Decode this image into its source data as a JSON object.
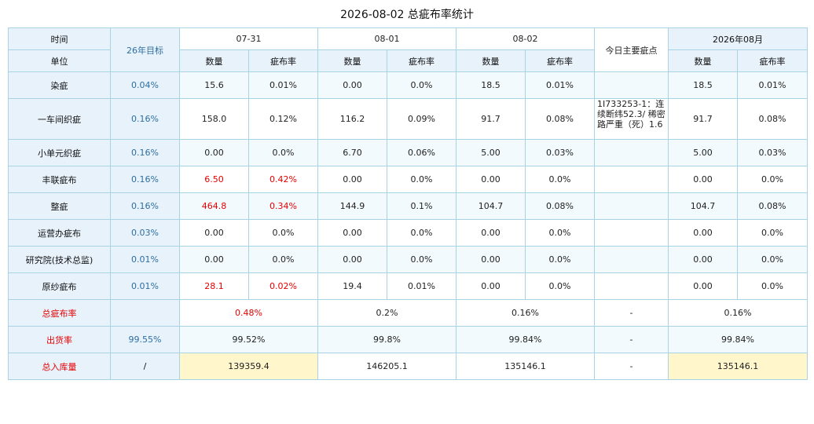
{
  "title": "2026-08-02 总疵布率统计",
  "header": {
    "time": "时间",
    "unit": "单位",
    "target": "26年目标",
    "dates": [
      "07-31",
      "08-01",
      "08-02"
    ],
    "main_defect": "今日主要疵点",
    "month": "2026年08月",
    "qty": "数量",
    "rate": "疵布率"
  },
  "rows": [
    {
      "name": "染疵",
      "target": "0.04%",
      "d1q": "15.6",
      "d1r": "0.01%",
      "d2q": "0.00",
      "d2r": "0.0%",
      "d3q": "18.5",
      "d3r": "0.01%",
      "note": "",
      "mq": "18.5",
      "mr": "0.01%"
    },
    {
      "name": "一车间织疵",
      "target": "0.16%",
      "d1q": "158.0",
      "d1r": "0.12%",
      "d2q": "116.2",
      "d2r": "0.09%",
      "d3q": "91.7",
      "d3r": "0.08%",
      "note": "1I733253-1：连续断纬52.3/ 稀密路严重（死）1.6",
      "mq": "91.7",
      "mr": "0.08%"
    },
    {
      "name": "小单元织疵",
      "target": "0.16%",
      "d1q": "0.00",
      "d1r": "0.0%",
      "d2q": "6.70",
      "d2r": "0.06%",
      "d3q": "5.00",
      "d3r": "0.03%",
      "note": "",
      "mq": "5.00",
      "mr": "0.03%"
    },
    {
      "name": "丰联疵布",
      "target": "0.16%",
      "d1q": "6.50",
      "d1r": "0.42%",
      "d2q": "0.00",
      "d2r": "0.0%",
      "d3q": "0.00",
      "d3r": "0.0%",
      "note": "",
      "mq": "0.00",
      "mr": "0.0%"
    },
    {
      "name": "整疵",
      "target": "0.16%",
      "d1q": "464.8",
      "d1r": "0.34%",
      "d2q": "144.9",
      "d2r": "0.1%",
      "d3q": "104.7",
      "d3r": "0.08%",
      "note": "",
      "mq": "104.7",
      "mr": "0.08%"
    },
    {
      "name": "运营办疵布",
      "target": "0.03%",
      "d1q": "0.00",
      "d1r": "0.0%",
      "d2q": "0.00",
      "d2r": "0.0%",
      "d3q": "0.00",
      "d3r": "0.0%",
      "note": "",
      "mq": "0.00",
      "mr": "0.0%"
    },
    {
      "name": "研究院(技术总监)",
      "target": "0.01%",
      "d1q": "0.00",
      "d1r": "0.0%",
      "d2q": "0.00",
      "d2r": "0.0%",
      "d3q": "0.00",
      "d3r": "0.0%",
      "note": "",
      "mq": "0.00",
      "mr": "0.0%"
    },
    {
      "name": "原纱疵布",
      "target": "0.01%",
      "d1q": "28.1",
      "d1r": "0.02%",
      "d2q": "19.4",
      "d2r": "0.01%",
      "d3q": "0.00",
      "d3r": "0.0%",
      "note": "",
      "mq": "0.00",
      "mr": "0.0%"
    }
  ],
  "summary": {
    "total_rate": {
      "label": "总疵布率",
      "target": "",
      "d1": "0.48%",
      "d2": "0.2%",
      "d3": "0.16%",
      "note": "-",
      "month": "0.16%"
    },
    "ship_rate": {
      "label": "出货率",
      "target": "99.55%",
      "d1": "99.52%",
      "d2": "99.8%",
      "d3": "99.84%",
      "note": "-",
      "month": "99.84%"
    },
    "stock_in": {
      "label": "总入库量",
      "target": "/",
      "d1": "139359.4",
      "d2": "146205.1",
      "d3": "135146.1",
      "note": "-",
      "month": "135146.1"
    }
  },
  "colors": {
    "border": "#a8d3e5",
    "header_bg": "#e8f2fb",
    "alt_row_bg": "#f3fafd",
    "highlight_red": "#e60000",
    "target_blue": "#2d6ea1",
    "stock_yellow": "#fff6cc"
  }
}
